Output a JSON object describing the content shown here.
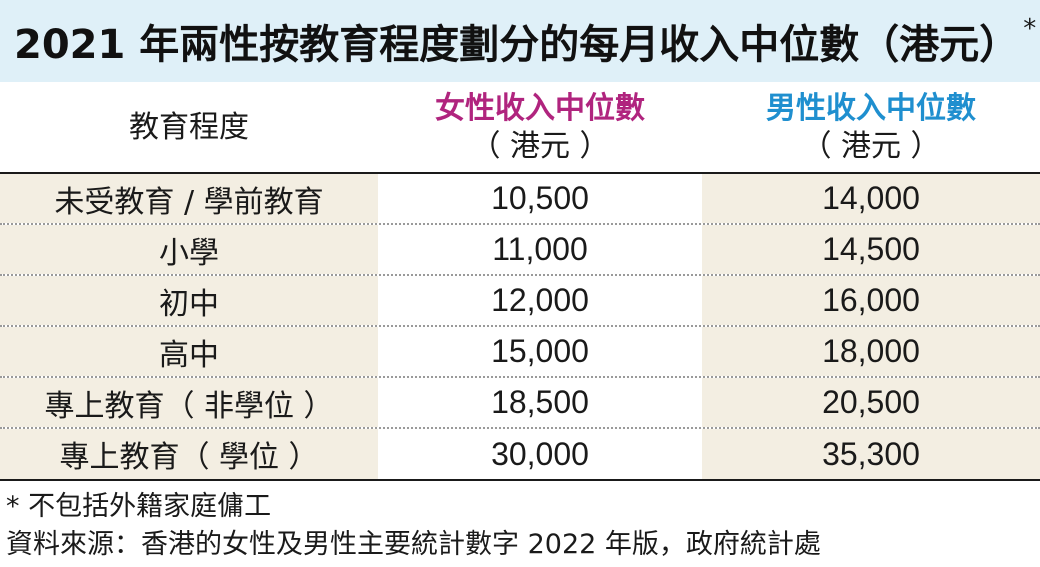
{
  "title": "2021 年兩性按教育程度劃分的每月收入中位數（港元）",
  "title_mark": "*",
  "headers": {
    "level": "教育程度",
    "female": "女性收入中位數",
    "male": "男性收入中位數",
    "unit": "（ 港元 ）"
  },
  "rows": [
    {
      "level": "未受教育 / 學前教育",
      "female": "10,500",
      "male": "14,000"
    },
    {
      "level": "小學",
      "female": "11,000",
      "male": "14,500"
    },
    {
      "level": "初中",
      "female": "12,000",
      "male": "16,000"
    },
    {
      "level": "高中",
      "female": "15,000",
      "male": "18,000"
    },
    {
      "level": "專上教育（ 非學位 ）",
      "female": "18,500",
      "male": "20,500"
    },
    {
      "level": "專上教育（ 學位 ）",
      "female": "30,000",
      "male": "35,300"
    }
  ],
  "notes": [
    "* 不包括外籍家庭傭工",
    "資料來源：香港的女性及男性主要統計數字 2022 年版，政府統計處"
  ],
  "colors": {
    "title_bg": "#dff0f8",
    "female_header": "#b0247e",
    "male_header": "#1f8fcf",
    "shaded_column": "#f3eee2"
  }
}
